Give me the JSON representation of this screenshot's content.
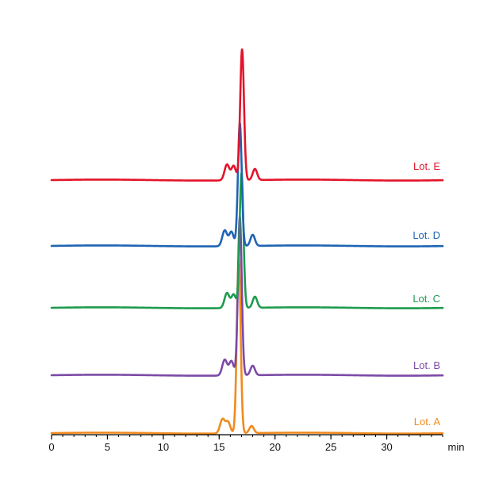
{
  "chart_data": {
    "type": "line",
    "title": "",
    "xlabel": "",
    "ylabel": "",
    "x_unit": "min",
    "xlim": [
      0,
      35
    ],
    "x_major_ticks": [
      0,
      5,
      10,
      15,
      20,
      25,
      30
    ],
    "x_tick_labels": [
      "0",
      "5",
      "10",
      "15",
      "20",
      "25",
      "30"
    ],
    "x_unit_label": "min",
    "minor_tick_step": 1,
    "grid": false,
    "legend": "inline labels at right end of each trace",
    "stacked_offsets": true,
    "series": [
      {
        "name": "Lot. A",
        "color": "#f08a1e",
        "offset": 0,
        "peaks": [
          {
            "x": 15.3,
            "height": 18,
            "width": 0.22
          },
          {
            "x": 15.8,
            "height": 14,
            "width": 0.2
          },
          {
            "x": 16.75,
            "height": 220,
            "width": 0.17
          },
          {
            "x": 17.9,
            "height": 9,
            "width": 0.2
          }
        ]
      },
      {
        "name": "Lot. B",
        "color": "#7b4aa6",
        "offset": 1,
        "peaks": [
          {
            "x": 15.5,
            "height": 20,
            "width": 0.22
          },
          {
            "x": 16.1,
            "height": 18,
            "width": 0.2
          },
          {
            "x": 16.85,
            "height": 200,
            "width": 0.17
          },
          {
            "x": 18.0,
            "height": 12,
            "width": 0.2
          }
        ]
      },
      {
        "name": "Lot. C",
        "color": "#1e9b4e",
        "offset": 2,
        "peaks": [
          {
            "x": 15.7,
            "height": 19,
            "width": 0.22
          },
          {
            "x": 16.3,
            "height": 17,
            "width": 0.2
          },
          {
            "x": 17.0,
            "height": 170,
            "width": 0.17
          },
          {
            "x": 18.2,
            "height": 14,
            "width": 0.2
          }
        ]
      },
      {
        "name": "Lot. D",
        "color": "#1f64b4",
        "offset": 3,
        "peaks": [
          {
            "x": 15.5,
            "height": 20,
            "width": 0.22
          },
          {
            "x": 16.1,
            "height": 18,
            "width": 0.2
          },
          {
            "x": 16.85,
            "height": 155,
            "width": 0.17
          },
          {
            "x": 18.0,
            "height": 14,
            "width": 0.2
          }
        ]
      },
      {
        "name": "Lot. E",
        "color": "#e3142a",
        "offset": 4,
        "peaks": [
          {
            "x": 15.7,
            "height": 20,
            "width": 0.22
          },
          {
            "x": 16.3,
            "height": 18,
            "width": 0.2
          },
          {
            "x": 17.05,
            "height": 165,
            "width": 0.17
          },
          {
            "x": 18.2,
            "height": 14,
            "width": 0.2
          }
        ]
      }
    ]
  }
}
